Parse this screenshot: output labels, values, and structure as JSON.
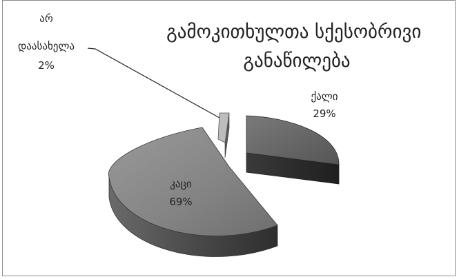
{
  "chart_data": {
    "type": "pie",
    "title": "გამოკითხულთა სქესობრივი განაწილება",
    "title_lines": [
      "გამოკითხულთა სქესობრივი",
      "განაწილება"
    ],
    "legend": "none",
    "style": "3d-exploded",
    "slices": [
      {
        "name": "ქალი",
        "value": 29,
        "value_label": "29%",
        "color": "#666666"
      },
      {
        "name": "კაცი",
        "value": 69,
        "value_label": "69%",
        "color": "#8e8e8e"
      },
      {
        "name_lines": [
          "არ",
          "დაასახელა"
        ],
        "name": "არ დაასახელა",
        "value": 2,
        "value_label": "2%",
        "color": "#bdbdbd"
      }
    ]
  }
}
